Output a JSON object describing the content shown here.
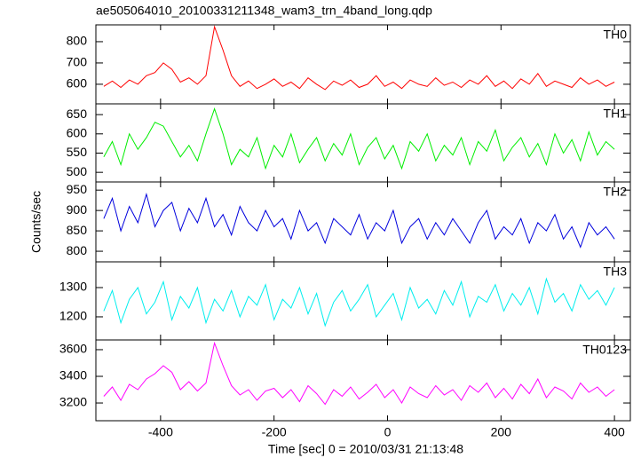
{
  "chart_data": [
    {
      "type": "line",
      "title": "ae505064010_20100331211348_wam3_trn_4band_long.qdp",
      "x": [
        -500,
        -485,
        -470,
        -455,
        -440,
        -425,
        -410,
        -395,
        -380,
        -365,
        -350,
        -335,
        -320,
        -305,
        -290,
        -275,
        -260,
        -245,
        -230,
        -215,
        -200,
        -185,
        -170,
        -155,
        -140,
        -125,
        -110,
        -95,
        -80,
        -65,
        -50,
        -35,
        -20,
        -5,
        10,
        25,
        40,
        55,
        70,
        85,
        100,
        115,
        130,
        145,
        160,
        175,
        190,
        205,
        220,
        235,
        250,
        265,
        280,
        295,
        310,
        325,
        340,
        355,
        370,
        385,
        400
      ],
      "series": [
        {
          "name": "TH0",
          "color": "#ff0000",
          "values": [
            590,
            615,
            585,
            620,
            600,
            640,
            655,
            700,
            670,
            610,
            630,
            600,
            640,
            870,
            760,
            640,
            590,
            615,
            580,
            600,
            625,
            590,
            610,
            580,
            630,
            600,
            575,
            615,
            595,
            620,
            585,
            600,
            640,
            590,
            610,
            580,
            620,
            600,
            590,
            630,
            595,
            610,
            585,
            620,
            600,
            640,
            590,
            615,
            580,
            625,
            600,
            650,
            590,
            615,
            600,
            585,
            630,
            600,
            620,
            590,
            610
          ]
        }
      ],
      "xlim": [
        -514,
        428
      ],
      "xticks": [
        -400,
        -200,
        0,
        200,
        400
      ],
      "ylim": [
        508,
        879
      ],
      "yticks": [
        600,
        700,
        800
      ]
    },
    {
      "type": "line",
      "x": [
        -500,
        -485,
        -470,
        -455,
        -440,
        -425,
        -410,
        -395,
        -380,
        -365,
        -350,
        -335,
        -320,
        -305,
        -290,
        -275,
        -260,
        -245,
        -230,
        -215,
        -200,
        -185,
        -170,
        -155,
        -140,
        -125,
        -110,
        -95,
        -80,
        -65,
        -50,
        -35,
        -20,
        -5,
        10,
        25,
        40,
        55,
        70,
        85,
        100,
        115,
        130,
        145,
        160,
        175,
        190,
        205,
        220,
        235,
        250,
        265,
        280,
        295,
        310,
        325,
        340,
        355,
        370,
        385,
        400
      ],
      "series": [
        {
          "name": "TH1",
          "color": "#00ee00",
          "values": [
            540,
            580,
            520,
            600,
            560,
            590,
            630,
            620,
            580,
            540,
            570,
            530,
            600,
            665,
            600,
            520,
            560,
            540,
            590,
            510,
            570,
            540,
            600,
            525,
            560,
            590,
            530,
            575,
            545,
            600,
            520,
            565,
            590,
            535,
            570,
            510,
            580,
            555,
            600,
            530,
            570,
            545,
            590,
            520,
            580,
            555,
            610,
            530,
            565,
            590,
            540,
            575,
            520,
            600,
            550,
            585,
            530,
            605,
            545,
            580,
            560
          ]
        }
      ],
      "xlim": [
        -514,
        428
      ],
      "xticks": [
        -400,
        -200,
        0,
        200,
        400
      ],
      "ylim": [
        475,
        678
      ],
      "yticks": [
        500,
        550,
        600,
        650
      ]
    },
    {
      "type": "line",
      "y_label": "Counts/sec",
      "x": [
        -500,
        -485,
        -470,
        -455,
        -440,
        -425,
        -410,
        -395,
        -380,
        -365,
        -350,
        -335,
        -320,
        -305,
        -290,
        -275,
        -260,
        -245,
        -230,
        -215,
        -200,
        -185,
        -170,
        -155,
        -140,
        -125,
        -110,
        -95,
        -80,
        -65,
        -50,
        -35,
        -20,
        -5,
        10,
        25,
        40,
        55,
        70,
        85,
        100,
        115,
        130,
        145,
        160,
        175,
        190,
        205,
        220,
        235,
        250,
        265,
        280,
        295,
        310,
        325,
        340,
        355,
        370,
        385,
        400
      ],
      "series": [
        {
          "name": "TH2",
          "color": "#0000dd",
          "values": [
            880,
            930,
            850,
            910,
            870,
            940,
            860,
            900,
            920,
            850,
            905,
            870,
            930,
            860,
            890,
            840,
            910,
            870,
            850,
            900,
            860,
            880,
            830,
            900,
            850,
            870,
            820,
            880,
            860,
            840,
            890,
            830,
            870,
            850,
            900,
            820,
            860,
            880,
            830,
            870,
            840,
            880,
            850,
            820,
            870,
            900,
            830,
            860,
            840,
            880,
            820,
            870,
            850,
            890,
            830,
            860,
            810,
            870,
            840,
            860,
            830
          ]
        }
      ],
      "xlim": [
        -514,
        428
      ],
      "xticks": [
        -400,
        -200,
        0,
        200,
        400
      ],
      "ylim": [
        774,
        970
      ],
      "yticks": [
        800,
        850,
        900,
        950
      ]
    },
    {
      "type": "line",
      "x": [
        -500,
        -485,
        -470,
        -455,
        -440,
        -425,
        -410,
        -395,
        -380,
        -365,
        -350,
        -335,
        -320,
        -305,
        -290,
        -275,
        -260,
        -245,
        -230,
        -215,
        -200,
        -185,
        -170,
        -155,
        -140,
        -125,
        -110,
        -95,
        -80,
        -65,
        -50,
        -35,
        -20,
        -5,
        10,
        25,
        40,
        55,
        70,
        85,
        100,
        115,
        130,
        145,
        160,
        175,
        190,
        205,
        220,
        235,
        250,
        265,
        280,
        295,
        310,
        325,
        340,
        355,
        370,
        385,
        400
      ],
      "series": [
        {
          "name": "TH3",
          "color": "#00eeee",
          "values": [
            1220,
            1290,
            1180,
            1260,
            1300,
            1210,
            1250,
            1320,
            1190,
            1270,
            1230,
            1300,
            1180,
            1260,
            1220,
            1290,
            1200,
            1270,
            1240,
            1310,
            1190,
            1260,
            1230,
            1300,
            1210,
            1280,
            1170,
            1250,
            1290,
            1220,
            1260,
            1310,
            1200,
            1240,
            1280,
            1190,
            1300,
            1230,
            1260,
            1210,
            1290,
            1240,
            1320,
            1200,
            1270,
            1250,
            1310,
            1220,
            1280,
            1240,
            1300,
            1210,
            1330,
            1250,
            1280,
            1220,
            1310,
            1260,
            1290,
            1240,
            1300
          ]
        }
      ],
      "xlim": [
        -514,
        428
      ],
      "xticks": [
        -400,
        -200,
        0,
        200,
        400
      ],
      "ylim": [
        1121,
        1388
      ],
      "yticks": [
        1200,
        1300
      ]
    },
    {
      "type": "line",
      "x_label": "Time [sec] 0 = 2010/03/31 21:13:48",
      "x": [
        -500,
        -485,
        -470,
        -455,
        -440,
        -425,
        -410,
        -395,
        -380,
        -365,
        -350,
        -335,
        -320,
        -305,
        -290,
        -275,
        -260,
        -245,
        -230,
        -215,
        -200,
        -185,
        -170,
        -155,
        -140,
        -125,
        -110,
        -95,
        -80,
        -65,
        -50,
        -35,
        -20,
        -5,
        10,
        25,
        40,
        55,
        70,
        85,
        100,
        115,
        130,
        145,
        160,
        175,
        190,
        205,
        220,
        235,
        250,
        265,
        280,
        295,
        310,
        325,
        340,
        355,
        370,
        385,
        400
      ],
      "series": [
        {
          "name": "TH0123",
          "color": "#ff00ff",
          "values": [
            3250,
            3320,
            3220,
            3340,
            3300,
            3380,
            3420,
            3480,
            3430,
            3300,
            3360,
            3290,
            3350,
            3650,
            3480,
            3330,
            3260,
            3300,
            3220,
            3290,
            3310,
            3240,
            3300,
            3210,
            3330,
            3270,
            3190,
            3300,
            3250,
            3320,
            3230,
            3280,
            3340,
            3240,
            3300,
            3200,
            3320,
            3270,
            3240,
            3330,
            3260,
            3300,
            3220,
            3330,
            3280,
            3350,
            3240,
            3310,
            3230,
            3340,
            3270,
            3380,
            3240,
            3320,
            3290,
            3230,
            3350,
            3280,
            3320,
            3250,
            3300
          ]
        }
      ],
      "xlim": [
        -514,
        428
      ],
      "xticks": [
        -400,
        -200,
        0,
        200,
        400
      ],
      "ylim": [
        3067,
        3673
      ],
      "yticks": [
        3200,
        3400,
        3600
      ]
    }
  ]
}
